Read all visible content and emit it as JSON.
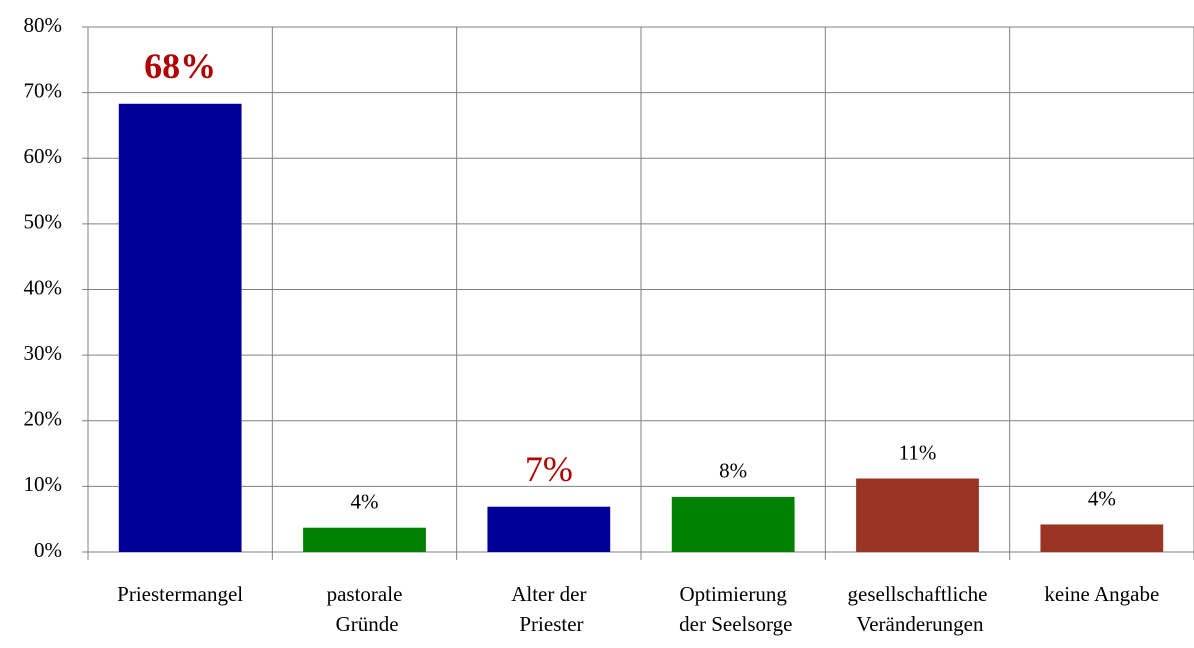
{
  "chart_data": {
    "type": "bar",
    "categories": [
      "Priestermangel",
      "pastorale\nGründe",
      "Alter der\nPriester",
      "Optimierung\nder Seelsorge",
      "gesellschaftliche\nVeränderungen",
      "keine Angabe"
    ],
    "values": [
      68.3,
      3.7,
      6.9,
      8.4,
      11.2,
      4.2
    ],
    "value_labels": [
      "68%",
      "4%",
      "7%",
      "8%",
      "11%",
      "4%"
    ],
    "colors": [
      "#000099",
      "#008000",
      "#000099",
      "#008000",
      "#993322",
      "#993322"
    ],
    "value_label_colors": [
      "#b00000",
      "#000000",
      "#b00000",
      "#000000",
      "#000000",
      "#000000"
    ],
    "ylim": [
      0,
      80
    ],
    "yticks": [
      {
        "value": 0,
        "label": "0%"
      },
      {
        "value": 10,
        "label": "10%"
      },
      {
        "value": 20,
        "label": "20%"
      },
      {
        "value": 30,
        "label": "30%"
      },
      {
        "value": 40,
        "label": "40%"
      },
      {
        "value": 50,
        "label": "50%"
      },
      {
        "value": 60,
        "label": "60%"
      },
      {
        "value": 70,
        "label": "70%"
      },
      {
        "value": 80,
        "label": "80%"
      }
    ],
    "grid": true
  }
}
